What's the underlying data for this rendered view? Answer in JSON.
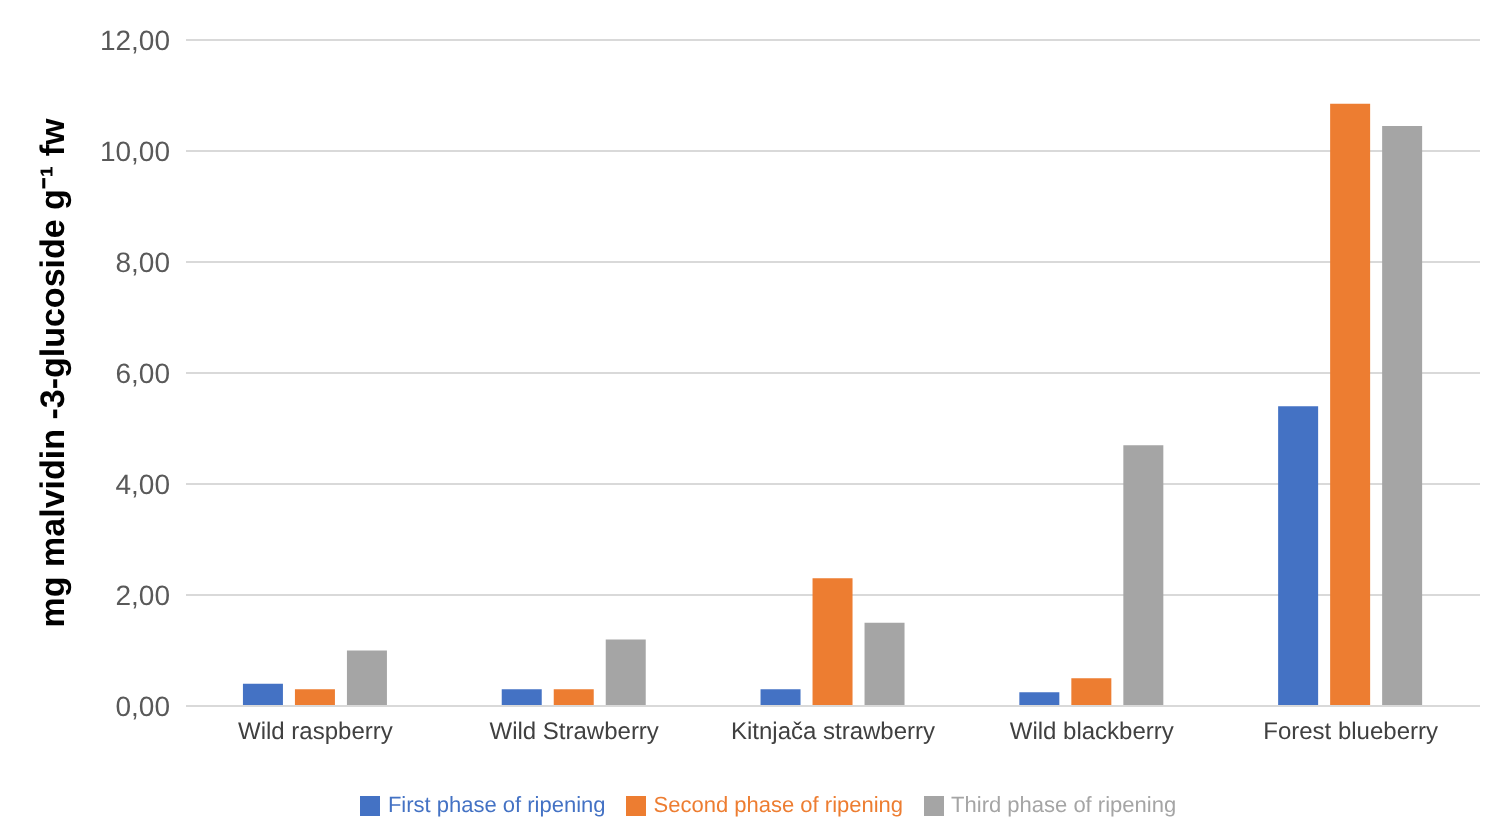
{
  "chart_data": {
    "type": "bar",
    "ylabel": "mg malvidin -3-glucoside g⁻¹ fw",
    "categories": [
      "Wild raspberry",
      "Wild Strawberry",
      "Kitnjača strawberry",
      "Wild blackberry",
      "Forest blueberry"
    ],
    "series": [
      {
        "name": "First phase of ripening",
        "color": "#4472c4",
        "values": [
          0.4,
          0.3,
          0.3,
          0.25,
          5.4
        ]
      },
      {
        "name": "Second phase of ripening",
        "color": "#ed7d31",
        "values": [
          0.3,
          0.3,
          2.3,
          0.5,
          10.85
        ]
      },
      {
        "name": "Third phase of ripening",
        "color": "#a5a5a5",
        "values": [
          1.0,
          1.2,
          1.5,
          4.7,
          10.45
        ]
      }
    ],
    "ylim": [
      0,
      12
    ],
    "yticks": [
      {
        "value": 0,
        "label": "0,00"
      },
      {
        "value": 2,
        "label": "2,00"
      },
      {
        "value": 4,
        "label": "4,00"
      },
      {
        "value": 6,
        "label": "6,00"
      },
      {
        "value": 8,
        "label": "8,00"
      },
      {
        "value": 10,
        "label": "10,00"
      },
      {
        "value": 12,
        "label": "12,00"
      }
    ],
    "grid": "y",
    "legend": "bottom"
  }
}
